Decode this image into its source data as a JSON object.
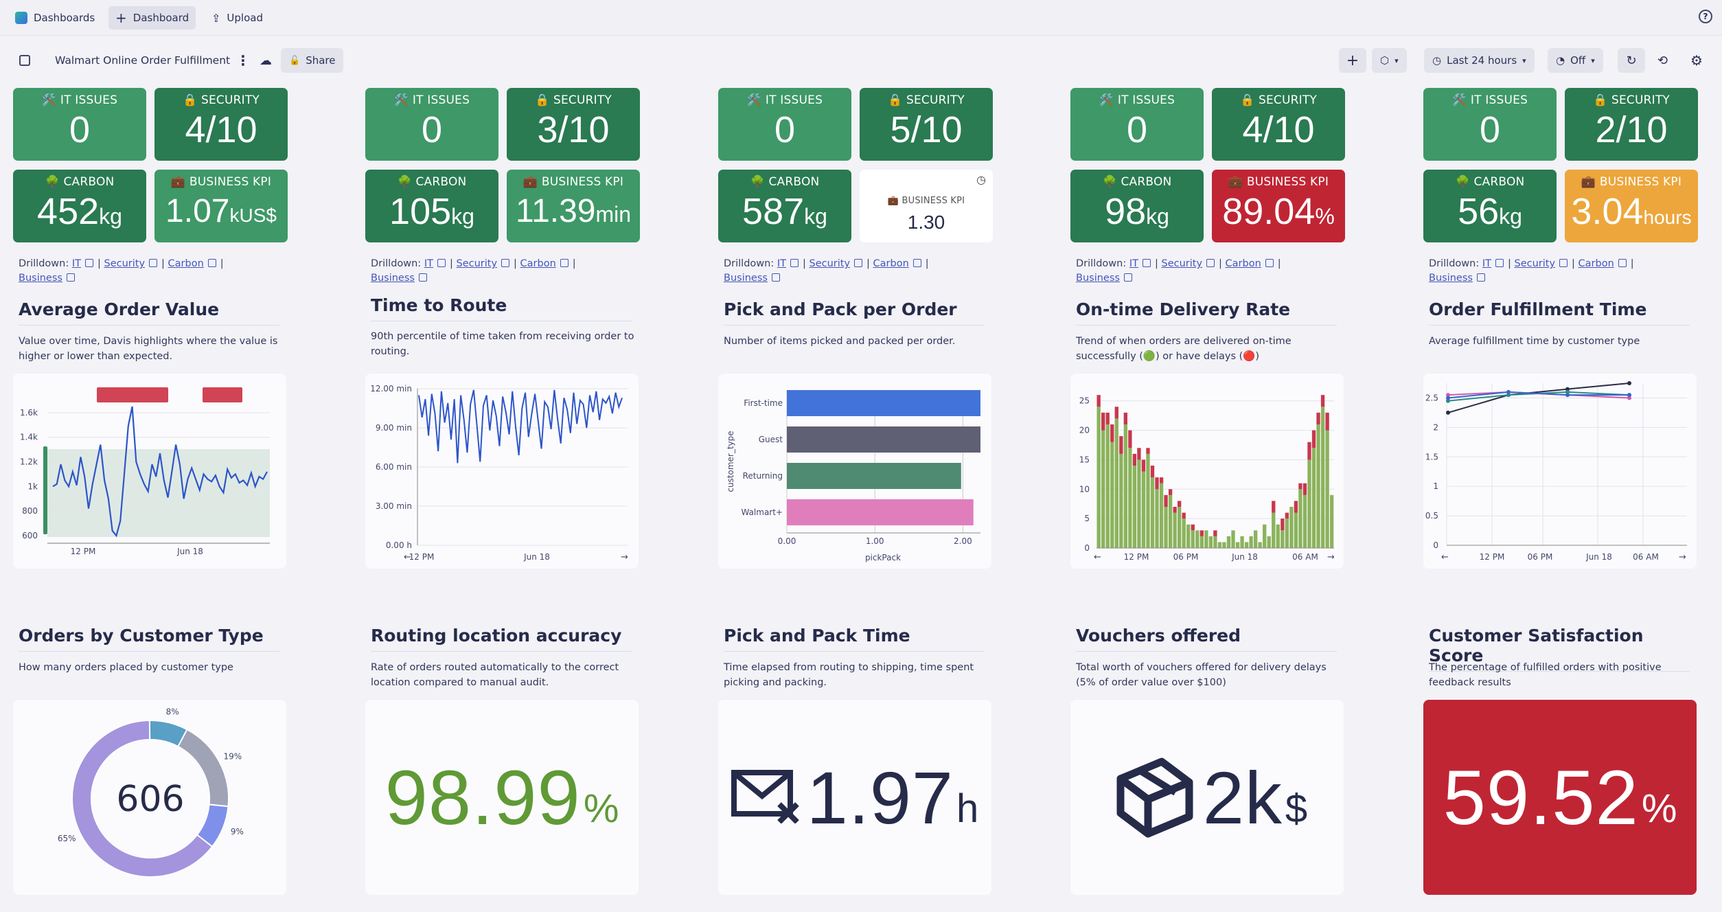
{
  "topbar": {
    "dashboards": "Dashboards",
    "new_dashboard": "Dashboard",
    "upload": "Upload",
    "help": "?"
  },
  "header": {
    "title": "Walmart Online Order Fulfillment",
    "share": "Share",
    "timeframe": "Last 24 hours",
    "refresh": "Off"
  },
  "colors": {
    "green_light": "#3e9867",
    "green_dark": "#2a7a52",
    "red": "#c02534",
    "orange": "#eda63c",
    "navy": "#262b4a"
  },
  "kpi_panels": [
    {
      "it": {
        "label": "🛠️ IT ISSUES",
        "value": "0"
      },
      "security": {
        "label": "🔒 SECURITY",
        "value": "4/10"
      },
      "carbon": {
        "label": "🌳 CARBON",
        "value": "452",
        "unit": "kg"
      },
      "business": {
        "label": "💼 BUSINESS KPI",
        "value": "1.07",
        "unit": "kUS$"
      }
    },
    {
      "it": {
        "label": "🛠️ IT ISSUES",
        "value": "0"
      },
      "security": {
        "label": "🔒 SECURITY",
        "value": "3/10"
      },
      "carbon": {
        "label": "🌳 CARBON",
        "value": "105",
        "unit": "kg"
      },
      "business": {
        "label": "💼 BUSINESS KPI",
        "value": "11.39",
        "unit": "min"
      }
    },
    {
      "it": {
        "label": "🛠️ IT ISSUES",
        "value": "0"
      },
      "security": {
        "label": "🔒 SECURITY",
        "value": "5/10"
      },
      "carbon": {
        "label": "🌳 CARBON",
        "value": "587",
        "unit": "kg"
      },
      "business": {
        "label": "💼 BUSINESS KPI",
        "value": "1.30",
        "unit": ""
      }
    },
    {
      "it": {
        "label": "🛠️ IT ISSUES",
        "value": "0"
      },
      "security": {
        "label": "🔒 SECURITY",
        "value": "4/10"
      },
      "carbon": {
        "label": "🌳 CARBON",
        "value": "98",
        "unit": "kg"
      },
      "business": {
        "label": "💼 BUSINESS KPI",
        "value": "89.04",
        "unit": "%"
      }
    },
    {
      "it": {
        "label": "🛠️ IT ISSUES",
        "value": "0"
      },
      "security": {
        "label": "🔒 SECURITY",
        "value": "2/10"
      },
      "carbon": {
        "label": "🌳 CARBON",
        "value": "56",
        "unit": "kg"
      },
      "business": {
        "label": "💼 BUSINESS KPI",
        "value": "3.04",
        "unit": "hours"
      }
    }
  ],
  "drilldown": {
    "prefix": "Drilldown:",
    "it": "IT",
    "security": "Security",
    "carbon": "Carbon",
    "business": "Business"
  },
  "row1": [
    {
      "title": "Average Order Value",
      "desc": "Value over time, Davis highlights where the value is higher or lower than expected."
    },
    {
      "title": "Time to Route",
      "desc": "90th percentile of time taken from receiving order to routing."
    },
    {
      "title": "Pick and Pack per Order",
      "desc": "Number of items picked and packed per order."
    },
    {
      "title": "On-time Delivery Rate",
      "desc": "Trend of when orders are delivered on-time successfully (🟢) or have delays (🔴)"
    },
    {
      "title": "Order Fulfillment Time",
      "desc": "Average fulfillment time by customer type"
    }
  ],
  "row2": [
    {
      "title": "Orders by Customer Type",
      "desc": "How many orders placed by customer type"
    },
    {
      "title": "Routing location accuracy",
      "desc": "Rate of orders routed automatically to the correct location compared to manual audit."
    },
    {
      "title": "Pick and Pack Time",
      "desc": "Time elapsed from routing to shipping, time spent picking and packing."
    },
    {
      "title": "Vouchers offered",
      "desc": "Total worth of vouchers offered for delivery delays (5% of order value over $100)"
    },
    {
      "title": "Customer Satisfaction Score",
      "desc": "The percentage of fulfilled orders with positive feedback results"
    }
  ],
  "singles": {
    "routing": {
      "value": "98.99",
      "unit": "%"
    },
    "pickpack": {
      "value": "1.97",
      "unit": "h"
    },
    "vouchers": {
      "value": "2k",
      "unit": "$"
    },
    "csat": {
      "value": "59.52",
      "unit": "%"
    }
  },
  "chart_data": [
    {
      "type": "line",
      "title": "Average Order Value",
      "x_ticks": [
        "12 PM",
        "Jun 18"
      ],
      "y_ticks": [
        "600",
        "800",
        "1k",
        "1.2k",
        "1.4k",
        "1.6k"
      ],
      "ylim": [
        550,
        1750
      ],
      "values": [
        1000,
        1020,
        1180,
        1050,
        1000,
        1120,
        1010,
        1240,
        1080,
        820,
        1020,
        1180,
        1340,
        1050,
        900,
        640,
        600,
        720,
        1100,
        1490,
        1650,
        1200,
        1100,
        1020,
        960,
        1180,
        1080,
        1270,
        1050,
        910,
        1120,
        1340,
        1180,
        900,
        1060,
        1150,
        1060,
        970,
        1100,
        1060,
        1040,
        1090,
        1000,
        950,
        1140,
        1070,
        1100,
        1030,
        1050,
        1010,
        1110,
        1000,
        1080,
        1060,
        1120
      ]
    },
    {
      "type": "line",
      "title": "Time to Route",
      "x_ticks": [
        "12 PM",
        "Jun 18"
      ],
      "y_ticks": [
        "0.00 h",
        "3.00 min",
        "6.00 min",
        "9.00 min",
        "12.00 min"
      ],
      "ylim": [
        0,
        12
      ],
      "values": [
        11.5,
        9.8,
        11.2,
        8.4,
        11.6,
        10.1,
        7.2,
        11.8,
        9.4,
        10.9,
        8.1,
        11.2,
        6.3,
        11.5,
        9.6,
        7.1,
        10.8,
        11.9,
        9.2,
        6.4,
        10.7,
        11.5,
        8.8,
        11.1,
        9.9,
        7.6,
        11.4,
        10.2,
        8.5,
        11.8,
        9.1,
        6.9,
        10.5,
        11.7,
        8.3,
        10.1,
        11.6,
        9.5,
        7.4,
        11.0,
        10.6,
        8.9,
        11.9,
        9.7,
        7.8,
        11.3,
        10.4,
        8.6,
        11.7,
        9.3,
        11.1,
        10.8,
        9.0,
        11.5,
        10.2,
        11.8,
        9.6,
        11.2,
        10.9,
        11.4,
        10.1,
        11.7,
        10.6,
        11.3
      ]
    },
    {
      "type": "bar",
      "title": "Pick and Pack per Order",
      "categories": [
        "First-time",
        "Guest",
        "Returning",
        "Walmart+"
      ],
      "values": [
        2.2,
        2.2,
        1.98,
        2.12
      ],
      "colors": [
        "#4273d8",
        "#5f6074",
        "#4e8b72",
        "#e07ebc"
      ],
      "xlabel": "pickPack",
      "ylabel": "customer_type",
      "x_ticks": [
        "0.00",
        "1.00",
        "2.00"
      ],
      "xlim": [
        0,
        2.2
      ]
    },
    {
      "type": "bar",
      "title": "On-time Delivery Rate",
      "x_ticks": [
        "12 PM",
        "06 PM",
        "Jun 18",
        "06 AM"
      ],
      "y_ticks": [
        "0",
        "5",
        "10",
        "15",
        "20",
        "25"
      ],
      "ylim": [
        0,
        28
      ],
      "on_time": [
        24,
        20,
        21,
        18,
        22,
        16,
        21,
        17,
        14,
        15,
        13,
        16,
        12,
        10,
        11,
        7,
        9,
        6,
        7,
        5,
        4,
        3,
        3,
        2,
        3,
        2,
        2,
        1,
        1,
        2,
        3,
        1,
        2,
        1,
        2,
        3,
        1,
        4,
        2,
        6,
        4,
        3,
        5,
        7,
        6,
        10,
        9,
        15,
        17,
        21,
        24,
        20,
        9
      ],
      "delay": [
        2,
        3,
        2,
        3,
        2,
        3,
        2,
        3,
        2,
        2,
        2,
        1,
        2,
        2,
        1,
        2,
        1,
        1,
        1,
        1,
        0,
        1,
        0,
        1,
        0,
        0,
        1,
        0,
        0,
        0,
        0,
        0,
        0,
        0,
        0,
        0,
        0,
        0,
        0,
        2,
        0,
        2,
        1,
        0,
        2,
        1,
        2,
        3,
        3,
        2,
        2,
        3,
        0
      ]
    },
    {
      "type": "line",
      "title": "Order Fulfillment Time",
      "x_ticks": [
        "12 PM",
        "06 PM",
        "Jun 18",
        "06 AM"
      ],
      "y_ticks": [
        "0",
        "0.5",
        "1",
        "1.5",
        "2",
        "2.5"
      ],
      "ylim": [
        0,
        2.75
      ],
      "series": [
        {
          "color": "#2a2c44",
          "values": [
            2.25,
            2.55,
            2.65,
            2.75,
            2.55
          ]
        },
        {
          "color": "#2a8b8b",
          "values": [
            2.45,
            2.55,
            2.6,
            2.55,
            2.75
          ]
        },
        {
          "color": "#d15ab0",
          "values": [
            2.55,
            2.6,
            2.55,
            2.5,
            2.6
          ]
        },
        {
          "color": "#3a66c9",
          "values": [
            2.5,
            2.6,
            2.55,
            2.55,
            2.7
          ]
        }
      ]
    },
    {
      "type": "pie",
      "title": "Orders by Customer Type",
      "center_label": "606",
      "values": [
        65,
        8,
        19,
        9
      ],
      "labels": [
        "65%",
        "8%",
        "19%",
        "9%"
      ],
      "colors": [
        "#a394dd",
        "#5a9fc6",
        "#a0a3b6",
        "#7e90ea"
      ]
    }
  ]
}
